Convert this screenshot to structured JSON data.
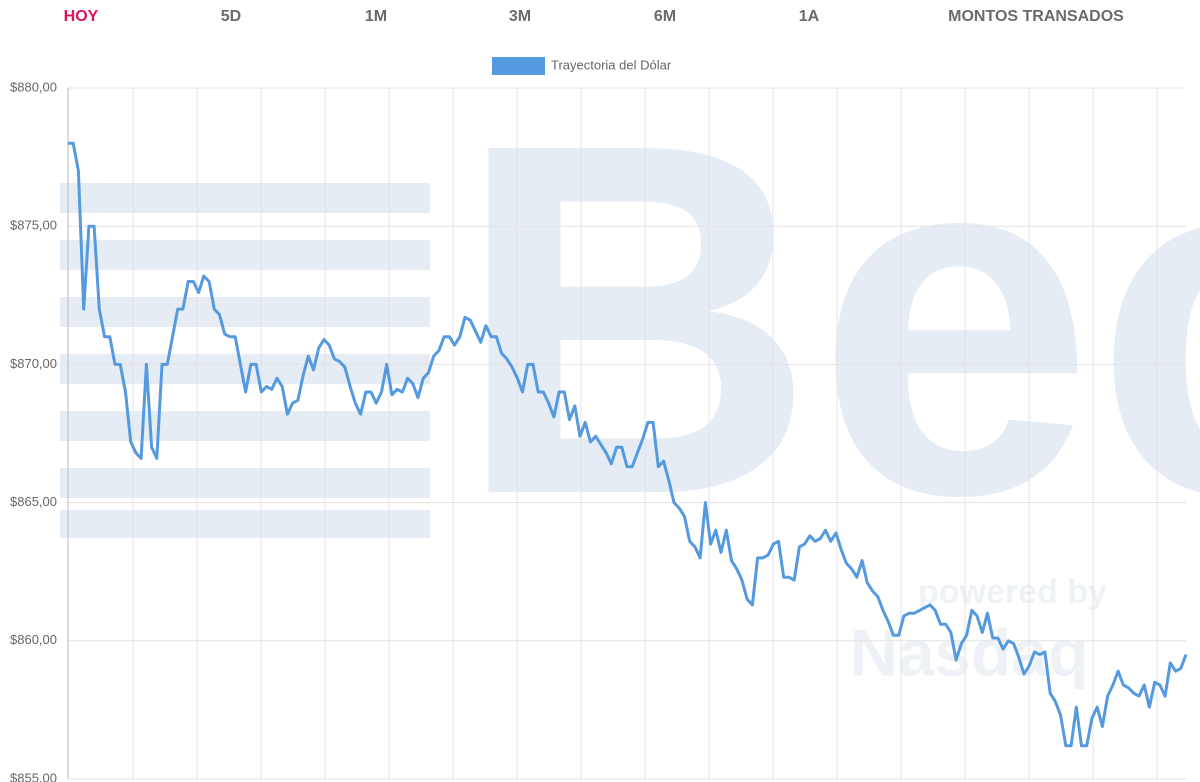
{
  "tabs": [
    "HOY",
    "5D",
    "1M",
    "3M",
    "6M",
    "1A",
    "MONTOS TRANSADOS"
  ],
  "watermark": {
    "brand": "Bec",
    "tagline": "powered by",
    "partner": "Nasdaq"
  },
  "chart_data": {
    "type": "line",
    "series": [
      {
        "name": "Trayectoria del Dólar",
        "color": "#5599e0",
        "values": [
          878.0,
          878.0,
          877.0,
          872.0,
          875.0,
          875.0,
          872.0,
          871.0,
          871.0,
          870.0,
          870.0,
          869.0,
          867.2,
          866.8,
          866.6,
          870.0,
          867.0,
          866.6,
          870.0,
          870.0,
          871.0,
          872.0,
          872.0,
          873.0,
          873.0,
          872.6,
          873.2,
          873.0,
          872.0,
          871.8,
          871.1,
          871.0,
          871.0,
          870.0,
          869.0,
          870.0,
          870.0,
          869.0,
          869.2,
          869.1,
          869.5,
          869.2,
          868.2,
          868.6,
          868.7,
          869.6,
          870.3,
          869.8,
          870.6,
          870.9,
          870.7,
          870.2,
          870.1,
          869.9,
          869.2,
          868.6,
          868.2,
          869.0,
          869.0,
          868.6,
          869.0,
          870.0,
          868.9,
          869.1,
          869.0,
          869.5,
          869.3,
          868.8,
          869.5,
          869.7,
          870.3,
          870.5,
          871.0,
          871.0,
          870.7,
          871.0,
          871.7,
          871.6,
          871.2,
          870.8,
          871.4,
          871.0,
          871.0,
          870.4,
          870.2,
          869.9,
          869.5,
          869.0,
          870.0,
          870.0,
          869.0,
          869.0,
          868.6,
          868.1,
          869.0,
          869.0,
          868.0,
          868.5,
          867.4,
          867.9,
          867.2,
          867.4,
          867.1,
          866.8,
          866.4,
          867.0,
          867.0,
          866.3,
          866.3,
          866.8,
          867.3,
          867.9,
          867.9,
          866.3,
          866.5,
          865.8,
          865.0,
          864.8,
          864.5,
          863.6,
          863.4,
          863.0,
          865.0,
          863.5,
          864.0,
          863.2,
          864.0,
          862.9,
          862.6,
          862.2,
          861.5,
          861.3,
          863.0,
          863.0,
          863.1,
          863.5,
          863.6,
          862.3,
          862.3,
          862.2,
          863.4,
          863.5,
          863.8,
          863.6,
          863.7,
          864.0,
          863.6,
          863.9,
          863.3,
          862.8,
          862.6,
          862.3,
          862.9,
          862.1,
          861.8,
          861.6,
          861.1,
          860.7,
          860.2,
          860.2,
          860.9,
          861.0,
          861.0,
          861.1,
          861.2,
          861.3,
          861.1,
          860.6,
          860.6,
          860.3,
          859.3,
          859.9,
          860.2,
          861.1,
          860.9,
          860.3,
          861.0,
          860.1,
          860.1,
          859.7,
          860.0,
          859.9,
          859.4,
          858.8,
          859.1,
          859.6,
          859.5,
          859.6,
          858.1,
          857.8,
          857.3,
          856.2,
          856.2,
          857.6,
          856.2,
          856.2,
          857.2,
          857.6,
          856.9,
          858.0,
          858.4,
          858.9,
          858.4,
          858.3,
          858.1,
          858.0,
          858.4,
          857.6,
          858.5,
          858.4,
          858.0,
          859.2,
          858.9,
          859.0,
          859.5
        ]
      }
    ],
    "ylim": [
      855,
      880
    ],
    "yticks": [
      {
        "value": 855,
        "label": "$855,00"
      },
      {
        "value": 860,
        "label": "$860,00"
      },
      {
        "value": 865,
        "label": "$865,00"
      },
      {
        "value": 870,
        "label": "$870,00"
      },
      {
        "value": 875,
        "label": "$875,00"
      },
      {
        "value": 880,
        "label": "$880,00"
      }
    ],
    "grid": true
  }
}
